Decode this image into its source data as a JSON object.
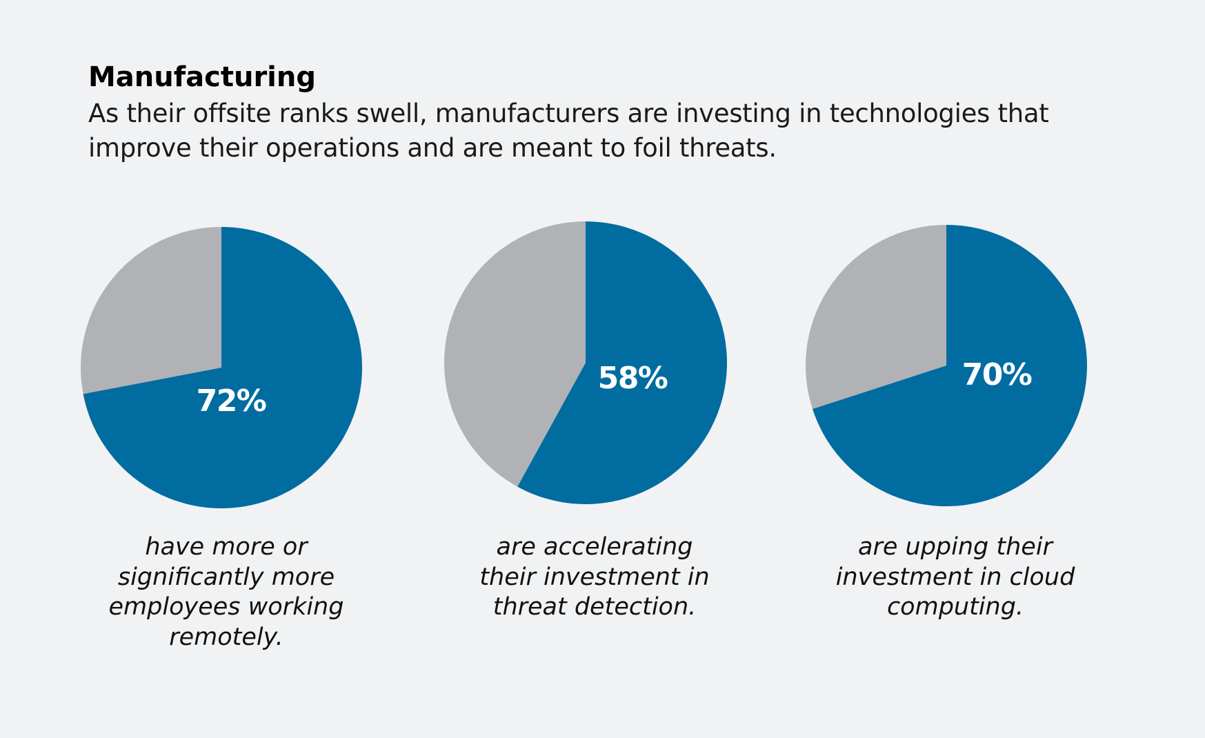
{
  "header": {
    "title": "Manufacturing",
    "subtitle": "As their offsite ranks swell, manufacturers are investing in technologies that improve their operations and are meant to foil threats."
  },
  "colors": {
    "primary": "#016c9f",
    "remainder": "#b1b2b5",
    "background": "#f1f2f4"
  },
  "chart_data": [
    {
      "type": "pie",
      "values": [
        72,
        28
      ],
      "label": "72%",
      "caption": "have more or significantly more employees working remotely."
    },
    {
      "type": "pie",
      "values": [
        58,
        42
      ],
      "label": "58%",
      "caption": "are accelerating their investment in threat detection."
    },
    {
      "type": "pie",
      "values": [
        70,
        30
      ],
      "label": "70%",
      "caption": "are upping their investment in cloud computing."
    }
  ]
}
